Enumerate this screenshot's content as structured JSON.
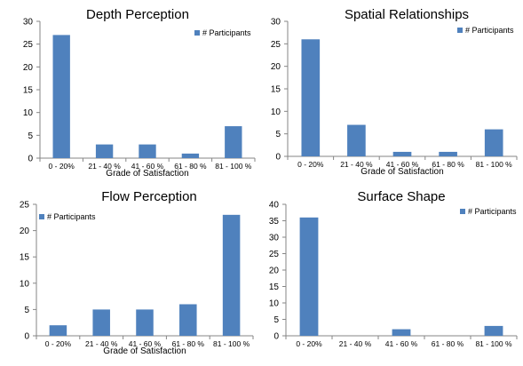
{
  "chart_data": [
    {
      "type": "bar",
      "title": "Depth Perception",
      "categories": [
        "0 - 20%",
        "21 - 40 %",
        "41 - 60 %",
        "61 - 80 %",
        "81 - 100 %"
      ],
      "series": [
        {
          "name": "# Participants",
          "values": [
            27,
            3,
            3,
            1,
            7
          ]
        }
      ],
      "xlabel": "Grade of Satisfaction",
      "ylabel": "",
      "ylim": [
        0,
        30
      ],
      "yticks": [
        0,
        5,
        10,
        15,
        20,
        25,
        30
      ],
      "legend": "top-right",
      "grid": false
    },
    {
      "type": "bar",
      "title": "Spatial Relationships",
      "categories": [
        "0 - 20%",
        "21 - 40 %",
        "41 - 60 %",
        "61 - 80 %",
        "81 - 100 %"
      ],
      "series": [
        {
          "name": "# Participants",
          "values": [
            26,
            7,
            1,
            1,
            6
          ]
        }
      ],
      "xlabel": "Grade of Satisfaction",
      "ylabel": "",
      "ylim": [
        0,
        30
      ],
      "yticks": [
        0,
        5,
        10,
        15,
        20,
        25,
        30
      ],
      "legend": "top-right",
      "grid": false
    },
    {
      "type": "bar",
      "title": "Flow Perception",
      "categories": [
        "0 - 20%",
        "21 - 40 %",
        "41 - 60 %",
        "61 - 80 %",
        "81 - 100 %"
      ],
      "series": [
        {
          "name": "# Participants",
          "values": [
            2,
            5,
            5,
            6,
            23
          ]
        }
      ],
      "xlabel": "Grade of Satisfaction",
      "ylabel": "",
      "ylim": [
        0,
        25
      ],
      "yticks": [
        0,
        5,
        10,
        15,
        20,
        25
      ],
      "legend": "top-left",
      "grid": false
    },
    {
      "type": "bar",
      "title": "Surface Shape",
      "categories": [
        "0 - 20%",
        "21 - 40 %",
        "41 - 60 %",
        "61 - 80 %",
        "81 - 100 %"
      ],
      "series": [
        {
          "name": "# Participants",
          "values": [
            36,
            0,
            2,
            0,
            3
          ]
        }
      ],
      "xlabel": "",
      "ylabel": "",
      "ylim": [
        0,
        40
      ],
      "yticks": [
        0,
        5,
        10,
        15,
        20,
        25,
        30,
        35,
        40
      ],
      "legend": "top-right",
      "grid": false
    }
  ],
  "colors": {
    "bar": "#4f81bd",
    "axis": "#868686",
    "text": "#000000"
  }
}
